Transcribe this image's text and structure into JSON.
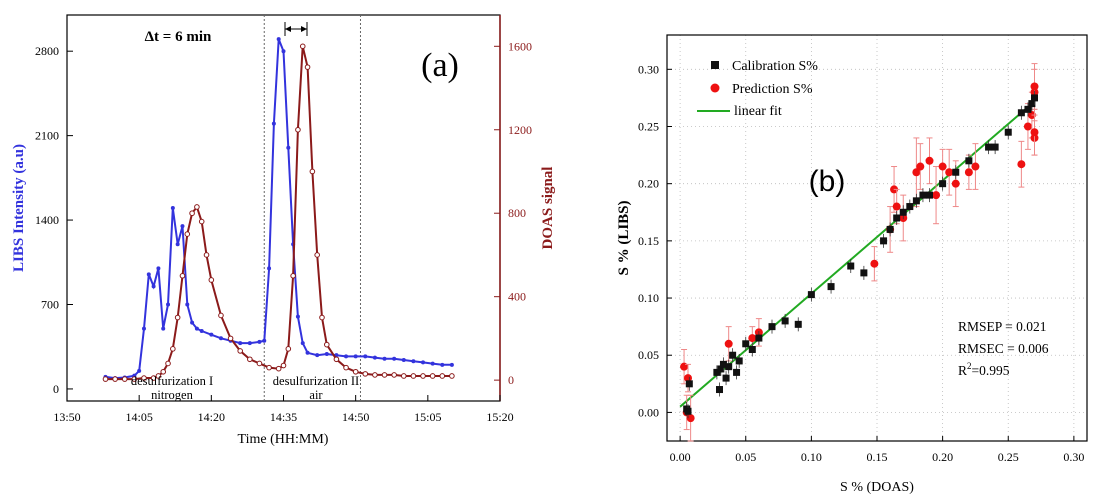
{
  "chart_data": [
    {
      "type": "line",
      "panel_label": "(a)",
      "xlabel": "Time (HH:MM)",
      "ylabel_left": "LIBS Intensity (a.u)",
      "ylabel_right": "DOAS signal",
      "xticks": [
        "13:50",
        "14:05",
        "14:20",
        "14:35",
        "14:50",
        "15:05",
        "15:20"
      ],
      "xticks_min": [
        -10,
        5,
        20,
        35,
        50,
        65,
        80
      ],
      "xlim": [
        -10,
        80
      ],
      "ylim_left": [
        -100,
        3100
      ],
      "yticks_left": [
        0,
        700,
        1400,
        2100,
        2800
      ],
      "ylim_right": [
        -100,
        1750
      ],
      "yticks_right": [
        0,
        400,
        800,
        1200,
        1600
      ],
      "annotation_dt": "Δt =  6 min",
      "vlines_min": [
        31,
        51
      ],
      "region_labels": [
        {
          "line1": "desulfurization I",
          "line2": "nitrogen"
        },
        {
          "line1": "desulfurization II",
          "line2": "air"
        }
      ],
      "colors": {
        "libs": "#3333dd",
        "doas": "#8b1a1a",
        "right_axis": "#8b1a1a",
        "left_axis_label": "#3333dd"
      },
      "series": [
        {
          "name": "LIBS",
          "axis": "left",
          "x": [
            -2,
            0,
            2,
            4,
            5,
            6,
            7,
            8,
            9,
            10,
            11,
            12,
            13,
            14,
            15,
            16,
            17,
            18,
            20,
            22,
            24,
            26,
            28,
            30,
            31,
            32,
            33,
            34,
            35,
            36,
            37,
            38,
            39,
            40,
            42,
            44,
            46,
            48,
            50,
            52,
            54,
            56,
            58,
            60,
            62,
            64,
            66,
            68,
            70
          ],
          "y": [
            100,
            90,
            95,
            110,
            150,
            500,
            950,
            850,
            1000,
            500,
            700,
            1500,
            1200,
            1350,
            700,
            550,
            500,
            480,
            450,
            420,
            400,
            380,
            380,
            390,
            400,
            1000,
            2200,
            2900,
            2800,
            2000,
            1200,
            600,
            380,
            300,
            280,
            290,
            280,
            270,
            270,
            270,
            260,
            250,
            250,
            240,
            230,
            220,
            210,
            200,
            200
          ]
        },
        {
          "name": "DOAS",
          "axis": "right",
          "x": [
            -2,
            0,
            2,
            4,
            6,
            8,
            9,
            10,
            11,
            12,
            13,
            14,
            15,
            16,
            17,
            18,
            19,
            20,
            22,
            24,
            26,
            28,
            30,
            32,
            34,
            35,
            36,
            37,
            38,
            39,
            40,
            41,
            42,
            43,
            44,
            46,
            48,
            50,
            52,
            54,
            56,
            58,
            60,
            62,
            64,
            66,
            68,
            70
          ],
          "y": [
            5,
            5,
            5,
            5,
            10,
            10,
            20,
            40,
            80,
            150,
            300,
            500,
            700,
            800,
            830,
            760,
            600,
            480,
            310,
            200,
            140,
            100,
            80,
            60,
            55,
            70,
            150,
            500,
            1200,
            1600,
            1500,
            1000,
            600,
            300,
            170,
            100,
            60,
            40,
            30,
            25,
            25,
            25,
            20,
            20,
            20,
            20,
            20,
            20
          ]
        }
      ]
    },
    {
      "type": "scatter",
      "panel_label": "(b)",
      "xlabel": "S % (DOAS)",
      "ylabel": "S % (LIBS)",
      "xlim": [
        -0.01,
        0.31
      ],
      "ylim": [
        -0.025,
        0.33
      ],
      "xticks": [
        "0.00",
        "0.05",
        "0.10",
        "0.15",
        "0.20",
        "0.25",
        "0.30"
      ],
      "yticks": [
        "0.00",
        "0.05",
        "0.10",
        "0.15",
        "0.20",
        "0.25",
        "0.30"
      ],
      "grid": true,
      "legend": [
        "Calibration S%",
        "Prediction S%",
        "linear fit"
      ],
      "legend_position": "top-left",
      "stats": {
        "rmsep": "RMSEP = 0.021",
        "rmsec": "RMSEC = 0.006",
        "r2_prefix": "R",
        "r2_sup": "2",
        "r2_value": "=0.995"
      },
      "colors": {
        "calibration": "#111111",
        "prediction": "#ee1111",
        "fit": "#22aa22",
        "error": "#ee8888"
      },
      "fit_line": {
        "x": [
          0.0,
          0.27
        ],
        "y": [
          0.005,
          0.272
        ]
      },
      "calibration": {
        "x": [
          0.005,
          0.006,
          0.007,
          0.028,
          0.03,
          0.031,
          0.033,
          0.035,
          0.037,
          0.04,
          0.043,
          0.045,
          0.05,
          0.055,
          0.06,
          0.07,
          0.08,
          0.09,
          0.1,
          0.115,
          0.13,
          0.14,
          0.155,
          0.16,
          0.165,
          0.17,
          0.175,
          0.18,
          0.185,
          0.19,
          0.2,
          0.21,
          0.22,
          0.235,
          0.24,
          0.25,
          0.26,
          0.265,
          0.268,
          0.27
        ],
        "y": [
          0.003,
          0.001,
          0.025,
          0.035,
          0.02,
          0.038,
          0.042,
          0.03,
          0.04,
          0.05,
          0.035,
          0.045,
          0.06,
          0.055,
          0.065,
          0.075,
          0.08,
          0.077,
          0.103,
          0.11,
          0.128,
          0.122,
          0.15,
          0.16,
          0.17,
          0.175,
          0.18,
          0.185,
          0.19,
          0.19,
          0.2,
          0.21,
          0.22,
          0.232,
          0.232,
          0.245,
          0.262,
          0.265,
          0.27,
          0.275
        ]
      },
      "prediction": {
        "x": [
          0.003,
          0.005,
          0.006,
          0.008,
          0.037,
          0.055,
          0.06,
          0.148,
          0.16,
          0.163,
          0.165,
          0.17,
          0.18,
          0.183,
          0.19,
          0.195,
          0.2,
          0.205,
          0.21,
          0.22,
          0.225,
          0.26,
          0.265,
          0.268,
          0.27,
          0.27,
          0.27,
          0.27
        ],
        "y": [
          0.04,
          0.0,
          0.03,
          -0.005,
          0.06,
          0.065,
          0.07,
          0.13,
          0.16,
          0.195,
          0.18,
          0.17,
          0.21,
          0.215,
          0.22,
          0.19,
          0.215,
          0.21,
          0.2,
          0.21,
          0.215,
          0.217,
          0.25,
          0.26,
          0.24,
          0.245,
          0.28,
          0.285
        ],
        "err": [
          0.015,
          0.015,
          0.012,
          0.02,
          0.015,
          0.01,
          0.012,
          0.015,
          0.02,
          0.02,
          0.015,
          0.02,
          0.03,
          0.02,
          0.02,
          0.025,
          0.015,
          0.02,
          0.02,
          0.015,
          0.02,
          0.02,
          0.02,
          0.02,
          0.015,
          0.02,
          0.02,
          0.02
        ]
      }
    }
  ]
}
